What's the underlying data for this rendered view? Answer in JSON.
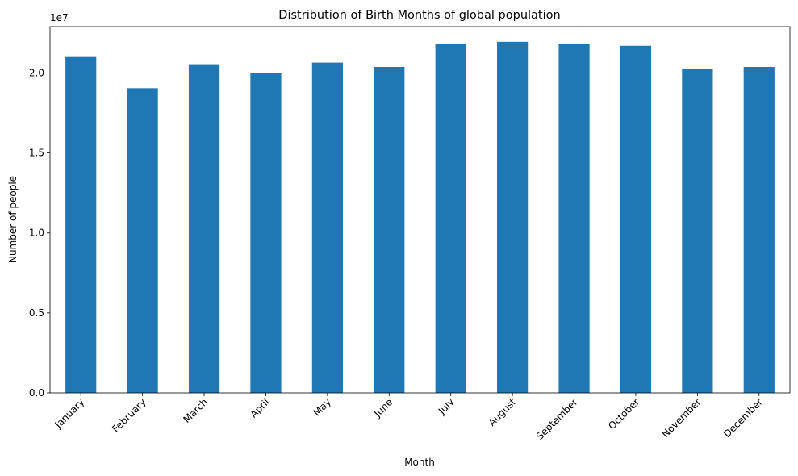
{
  "chart_data": {
    "type": "bar",
    "title": "Distribution of Birth Months of global population",
    "xlabel": "Month",
    "ylabel": "Number of people",
    "offset_text": "1e7",
    "ylim": [
      0,
      22900000
    ],
    "yticks": [
      0,
      5000000,
      10000000,
      15000000,
      20000000
    ],
    "ytick_labels": [
      "0.0",
      "0.5",
      "1.0",
      "1.5",
      "2.0"
    ],
    "grid": false,
    "legend": "none",
    "bar_color": "#1f77b4",
    "categories": [
      "January",
      "February",
      "March",
      "April",
      "May",
      "June",
      "July",
      "August",
      "September",
      "October",
      "November",
      "December"
    ],
    "values": [
      21000000,
      19050000,
      20550000,
      19980000,
      20650000,
      20380000,
      21800000,
      21950000,
      21800000,
      21700000,
      20280000,
      20380000
    ]
  }
}
